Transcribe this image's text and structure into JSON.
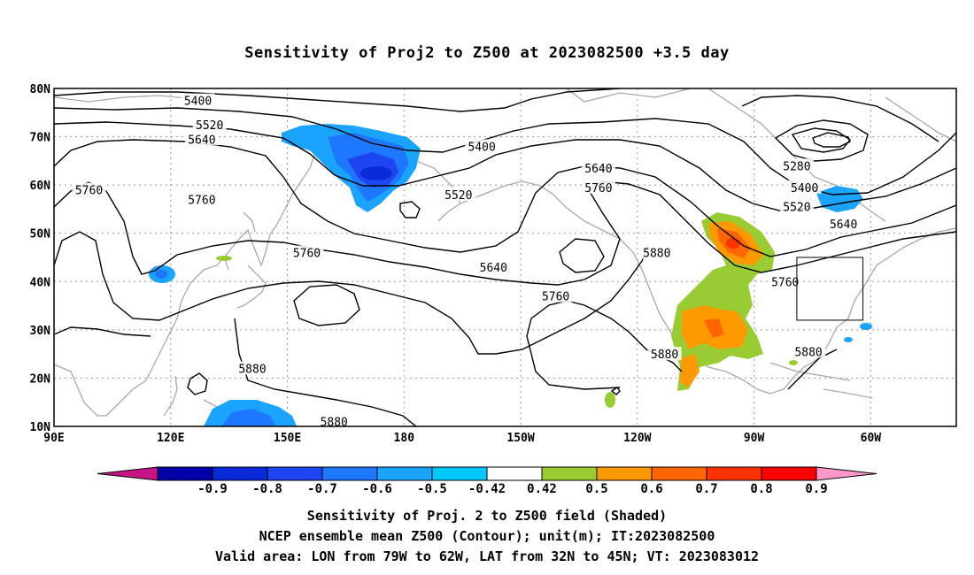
{
  "title": "Sensitivity of Proj2 to Z500 at 2023082500 +3.5 day",
  "map": {
    "lon_range": [
      90,
      322
    ],
    "lat_range": [
      10,
      80
    ],
    "lat_ticks": [
      "80N",
      "70N",
      "60N",
      "50N",
      "40N",
      "30N",
      "20N",
      "10N"
    ],
    "lon_ticks": [
      "90E",
      "120E",
      "150E",
      "180",
      "150W",
      "120W",
      "90W",
      "60W"
    ],
    "valid_area": {
      "lon": [
        281,
        298
      ],
      "lat": [
        32,
        45
      ]
    },
    "contour_labels": [
      {
        "text": "5400",
        "lon": 127,
        "lat": 77.5
      },
      {
        "text": "5520",
        "lon": 130,
        "lat": 72.5
      },
      {
        "text": "5640",
        "lon": 128,
        "lat": 69.5
      },
      {
        "text": "5400",
        "lon": 200,
        "lat": 68
      },
      {
        "text": "5640",
        "lon": 230,
        "lat": 63.5
      },
      {
        "text": "5760",
        "lon": 230,
        "lat": 59.5
      },
      {
        "text": "5520",
        "lon": 194,
        "lat": 58
      },
      {
        "text": "5760",
        "lon": 99,
        "lat": 59
      },
      {
        "text": "5760",
        "lon": 128,
        "lat": 57
      },
      {
        "text": "5760",
        "lon": 155,
        "lat": 46
      },
      {
        "text": "5640",
        "lon": 203,
        "lat": 43
      },
      {
        "text": "5760",
        "lon": 219,
        "lat": 37
      },
      {
        "text": "5880",
        "lon": 245,
        "lat": 46
      },
      {
        "text": "5280",
        "lon": 281,
        "lat": 64
      },
      {
        "text": "5400",
        "lon": 283,
        "lat": 59.5
      },
      {
        "text": "5520",
        "lon": 281,
        "lat": 55.5
      },
      {
        "text": "5640",
        "lon": 293,
        "lat": 52
      },
      {
        "text": "5760",
        "lon": 278,
        "lat": 40
      },
      {
        "text": "5880",
        "lon": 247,
        "lat": 25
      },
      {
        "text": "5880",
        "lon": 284,
        "lat": 25.5
      },
      {
        "text": "5880",
        "lon": 141,
        "lat": 22
      },
      {
        "text": "5880",
        "lon": 162,
        "lat": 11
      }
    ]
  },
  "colorbar": {
    "labels": [
      "-0.9",
      "-0.8",
      "-0.7",
      "-0.6",
      "-0.5",
      "-0.42",
      "0.42",
      "0.5",
      "0.6",
      "0.7",
      "0.8",
      "0.9"
    ],
    "colors": [
      "#c71585",
      "#0000a8",
      "#0a2ad8",
      "#1e46f0",
      "#1e78ff",
      "#1aa3ff",
      "#00c8ff",
      "#ffffff",
      "#99cc33",
      "#ff9900",
      "#ff6600",
      "#ff3300",
      "#ff0000",
      "#ff99cc"
    ]
  },
  "captions": {
    "line1": "Sensitivity of Proj. 2 to Z500 field (Shaded)",
    "line2": "NCEP ensemble mean Z500 (Contour); unit(m); IT:2023082500",
    "line3": "Valid area: LON from 79W to 62W, LAT from 32N to 45N; VT: 2023083012"
  }
}
